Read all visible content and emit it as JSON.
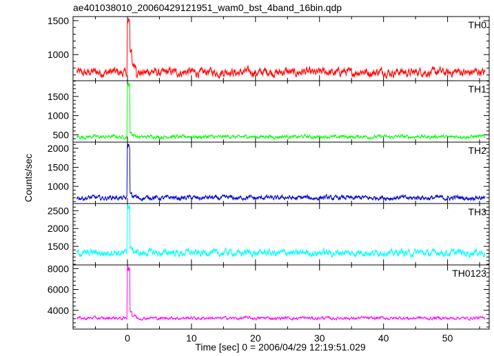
{
  "chart_data": {
    "type": "line",
    "title": "ae401038010_20060429121951_wam0_bst_4band_16bin.qdp",
    "xlabel": "Time [sec] 0 = 2006/04/29 12:19:51.029",
    "ylabel": "Counts/sec",
    "xlim": [
      -8.5,
      56.5
    ],
    "x_ticks": [
      0,
      10,
      20,
      30,
      40,
      50
    ],
    "x_tick_labels": [
      "0",
      "10",
      "20",
      "30",
      "40",
      "50"
    ],
    "grid": false,
    "panels": [
      {
        "name": "TH0",
        "color": "#ff0000",
        "ylim": [
          615,
          1560
        ],
        "y_ticks": [
          1000,
          1500
        ],
        "y_tick_labels": [
          "1000",
          "1500"
        ],
        "baseline": 740,
        "noise": 45,
        "peak": 1530,
        "tail": 1050
      },
      {
        "name": "TH1",
        "color": "#00ff00",
        "ylim": [
          310,
          1910
        ],
        "y_ticks": [
          500,
          1000,
          1500
        ],
        "y_tick_labels": [
          "500",
          "1000",
          "1500"
        ],
        "baseline": 450,
        "noise": 35,
        "peak": 1880,
        "tail": 560
      },
      {
        "name": "TH2",
        "color": "#0000cc",
        "ylim": [
          550,
          2160
        ],
        "y_ticks": [
          1000,
          1500,
          2000
        ],
        "y_tick_labels": [
          "1000",
          "1500",
          "2000"
        ],
        "baseline": 700,
        "noise": 45,
        "peak": 2110,
        "tail": 820
      },
      {
        "name": "TH3",
        "color": "#00ffff",
        "ylim": [
          980,
          2700
        ],
        "y_ticks": [
          1500,
          2000,
          2500
        ],
        "y_tick_labels": [
          "1500",
          "2000",
          "2500"
        ],
        "baseline": 1320,
        "noise": 70,
        "peak": 2660,
        "tail": 1450
      },
      {
        "name": "TH0123",
        "color": "#ff00ff",
        "ylim": [
          2200,
          8350
        ],
        "y_ticks": [
          4000,
          6000,
          8000
        ],
        "y_tick_labels": [
          "4000",
          "6000",
          "8000"
        ],
        "baseline": 3250,
        "noise": 110,
        "peak": 8150,
        "tail": 3900
      }
    ]
  }
}
